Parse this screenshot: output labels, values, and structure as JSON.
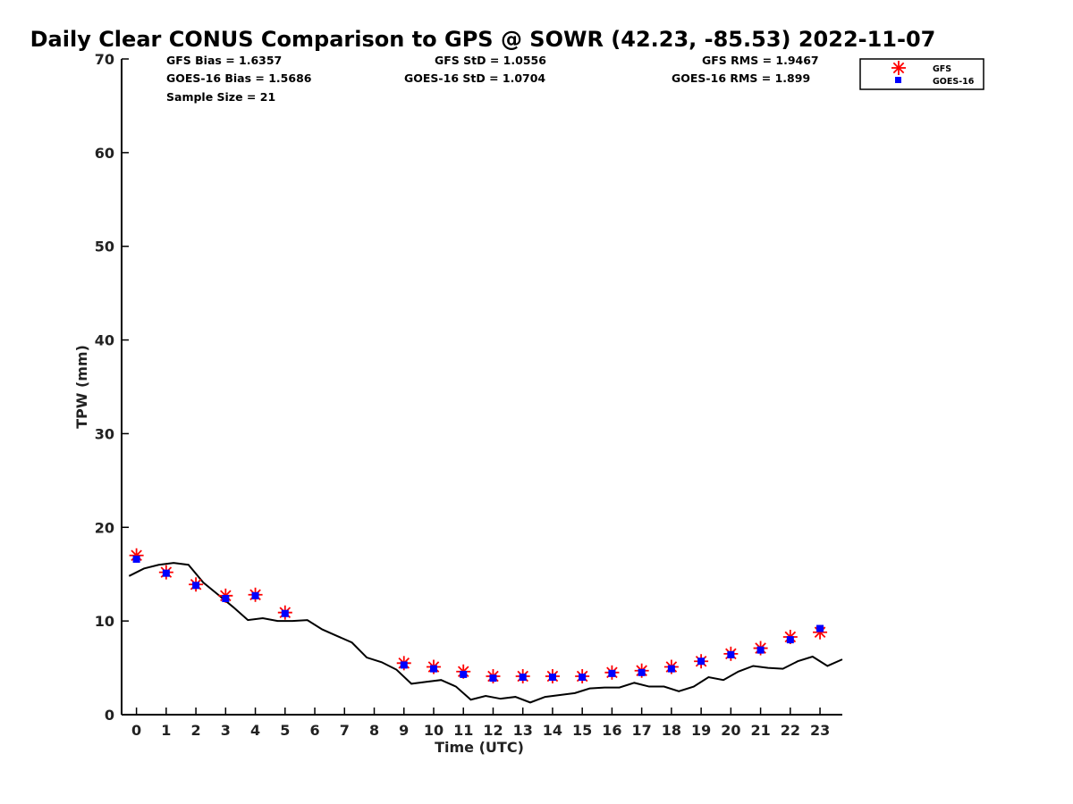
{
  "title": "Daily Clear CONUS Comparison to GPS @ SOWR (42.23, -85.53) 2022-11-07",
  "stats": {
    "gfs_bias": "GFS Bias = 1.6357",
    "goes_bias": "GOES-16 Bias = 1.5686",
    "sample_size": "Sample Size = 21",
    "gfs_std": "GFS StD = 1.0556",
    "goes_std": "GOES-16 StD = 1.0704",
    "gfs_rms": "GFS RMS = 1.9467",
    "goes_rms": "GOES-16 RMS = 1.899"
  },
  "colors": {
    "gfs": "#ff0000",
    "goes": "#0000ff",
    "gps": "#000000"
  },
  "chart_data": {
    "type": "line",
    "xlabel": "Time (UTC)",
    "ylabel": "TPW (mm)",
    "xlim": [
      -0.5,
      23.75
    ],
    "ylim": [
      0,
      70
    ],
    "xticks": [
      0,
      1,
      2,
      3,
      4,
      5,
      6,
      7,
      8,
      9,
      10,
      11,
      12,
      13,
      14,
      15,
      16,
      17,
      18,
      19,
      20,
      21,
      22,
      23
    ],
    "yticks": [
      0,
      10,
      20,
      30,
      40,
      50,
      60,
      70
    ],
    "grid": false,
    "legend_position": "top-right (outside plot)",
    "series": [
      {
        "name": "GFS",
        "marker": "asterisk",
        "x": [
          0,
          1,
          2,
          3,
          4,
          5,
          9,
          10,
          11,
          12,
          13,
          14,
          15,
          16,
          17,
          18,
          19,
          20,
          21,
          22,
          23
        ],
        "y": [
          17.0,
          15.2,
          13.9,
          12.7,
          12.8,
          10.9,
          5.5,
          5.1,
          4.6,
          4.1,
          4.1,
          4.1,
          4.1,
          4.5,
          4.7,
          5.1,
          5.7,
          6.5,
          7.1,
          8.3,
          8.8
        ]
      },
      {
        "name": "GOES-16",
        "marker": "square",
        "x": [
          0,
          1,
          2,
          3,
          4,
          5,
          9,
          10,
          11,
          12,
          13,
          14,
          15,
          16,
          17,
          18,
          19,
          20,
          21,
          22,
          23
        ],
        "y": [
          16.6,
          15.1,
          13.8,
          12.4,
          12.7,
          10.8,
          5.3,
          4.9,
          4.3,
          3.9,
          4.0,
          4.0,
          4.0,
          4.4,
          4.5,
          4.9,
          5.7,
          6.4,
          6.9,
          8.0,
          9.2
        ]
      },
      {
        "name": "",
        "marker": "line",
        "x": [
          -0.25,
          0.25,
          0.75,
          1.25,
          1.75,
          2.25,
          2.75,
          3.25,
          3.75,
          4.25,
          4.75,
          5.25,
          5.75,
          6.25,
          6.75,
          7.25,
          7.75,
          8.25,
          8.75,
          9.25,
          9.75,
          10.25,
          10.75,
          11.25,
          11.75,
          12.25,
          12.75,
          13.25,
          13.75,
          14.25,
          14.75,
          15.25,
          15.75,
          16.25,
          16.75,
          17.25,
          17.75,
          18.25,
          18.75,
          19.25,
          19.75,
          20.25,
          20.75,
          21.25,
          21.75,
          22.25,
          22.75,
          23.25,
          23.75
        ],
        "y": [
          14.8,
          15.6,
          16.0,
          16.2,
          16.0,
          14.1,
          12.8,
          11.5,
          10.1,
          10.3,
          10.0,
          10.0,
          10.1,
          9.1,
          8.4,
          7.7,
          6.1,
          5.6,
          4.8,
          3.3,
          3.5,
          3.7,
          3.0,
          1.6,
          2.0,
          1.7,
          1.9,
          1.3,
          1.9,
          2.1,
          2.3,
          2.8,
          2.9,
          2.9,
          3.4,
          3.0,
          3.0,
          2.5,
          3.0,
          4.0,
          3.7,
          4.6,
          5.2,
          5.0,
          4.9,
          5.7,
          6.2,
          5.2,
          5.9
        ]
      }
    ]
  }
}
